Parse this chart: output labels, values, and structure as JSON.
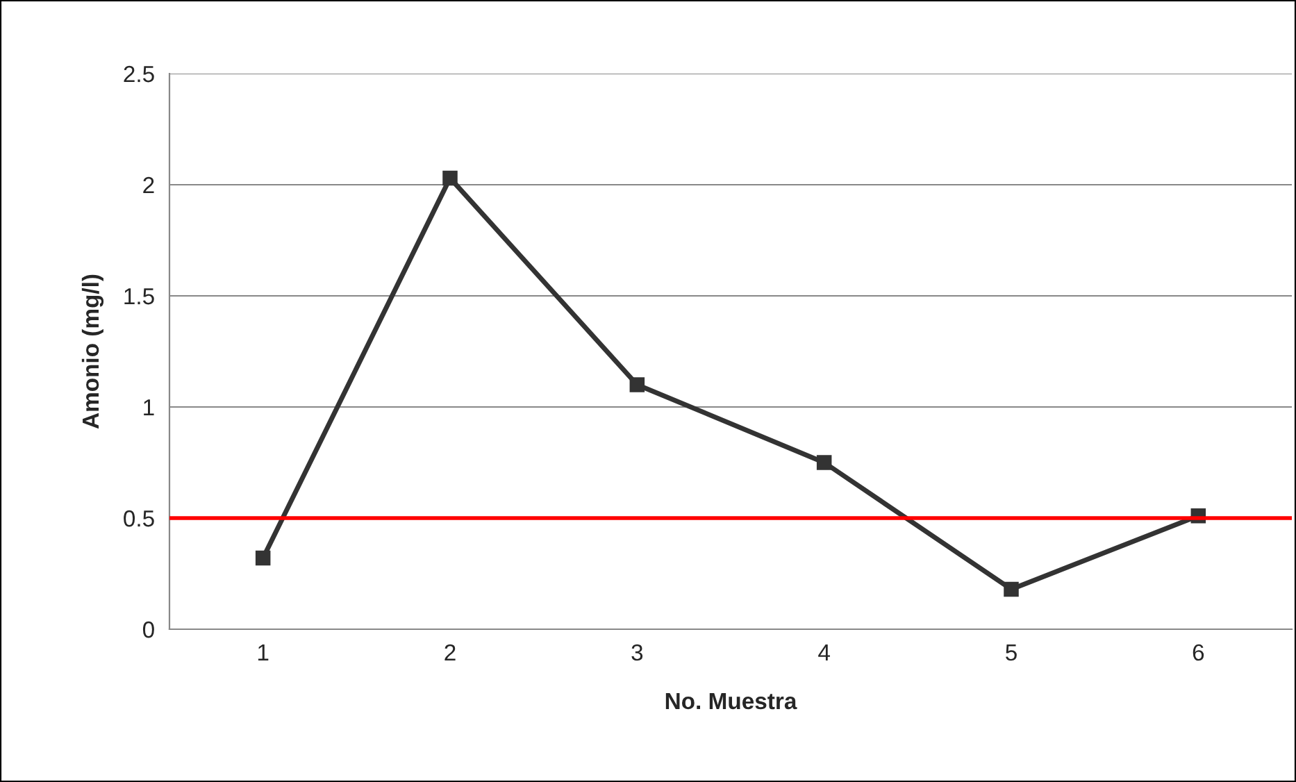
{
  "chart_data": {
    "type": "line",
    "xlabel": "No. Muestra",
    "ylabel": "Amonio (mg/l)",
    "categories": [
      "1",
      "2",
      "3",
      "4",
      "5",
      "6"
    ],
    "series": [
      {
        "color": "#333333",
        "values": [
          0.32,
          2.03,
          1.1,
          0.75,
          0.18,
          0.51
        ]
      }
    ],
    "ylim": [
      0,
      2.5
    ],
    "yticks": [
      0,
      0.5,
      1,
      1.5,
      2,
      2.5
    ],
    "grid": "y",
    "marker": "square",
    "line_style": "solid",
    "ref_lines": [
      {
        "axis": "y",
        "value": 0.5,
        "color": "#ff0000"
      }
    ]
  }
}
